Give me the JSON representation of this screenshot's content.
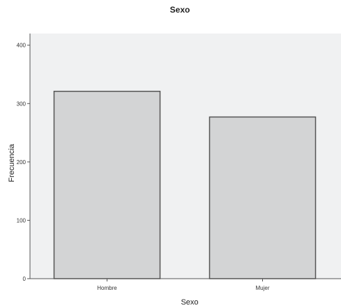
{
  "chart_data": {
    "type": "bar",
    "title": "Sexo",
    "xlabel": "Sexo",
    "ylabel": "Frecuencia",
    "categories": [
      "Hombre",
      "Mujer"
    ],
    "values": [
      321,
      277
    ],
    "ylim": [
      0,
      420
    ],
    "yticks": [
      0,
      100,
      200,
      300,
      400
    ],
    "grid": false,
    "colors": {
      "plot_background": "#f0f1f2",
      "bar_fill": "#d3d4d5",
      "bar_stroke": "#555555",
      "axis": "#555555"
    }
  }
}
